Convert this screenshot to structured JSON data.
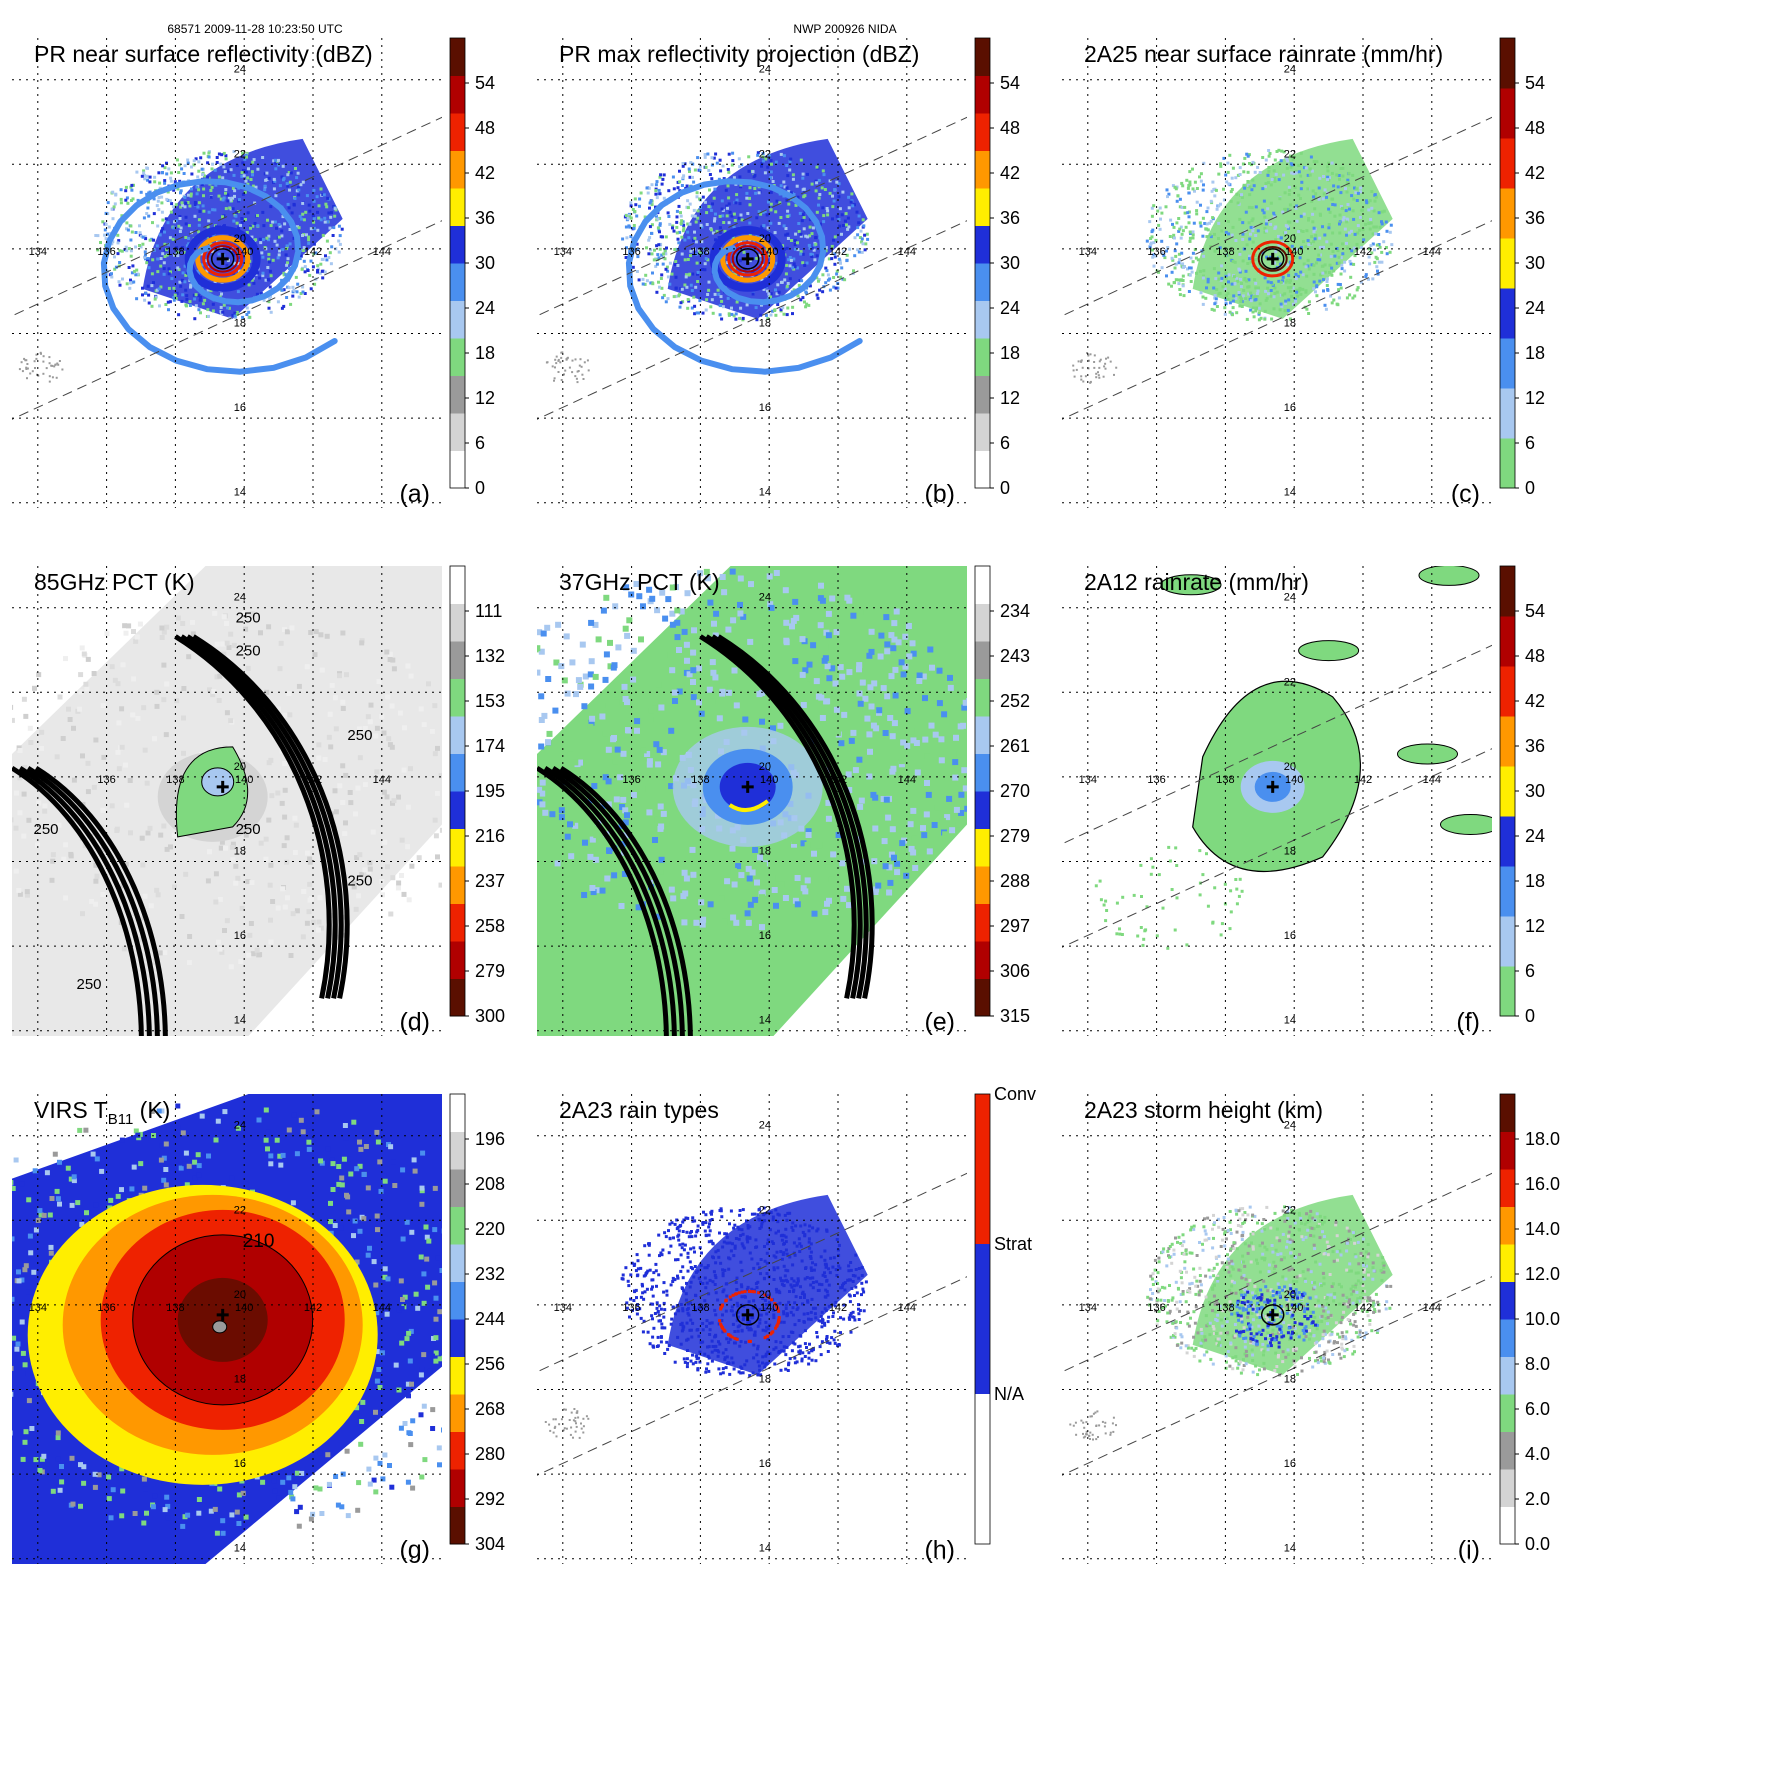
{
  "header": {
    "orbit_time": "68571 2009-11-28 10:23:50 UTC",
    "storm": "NWP 200926 NIDA"
  },
  "grid": {
    "lon_labels": [
      "134",
      "136",
      "138",
      "140",
      "142",
      "144"
    ],
    "lat_labels": [
      "14",
      "16",
      "18",
      "20",
      "22",
      "24"
    ]
  },
  "colors": {
    "white": "#ffffff",
    "lightgray": "#d4d4d4",
    "gray": "#9a9a9a",
    "green": "#7fd97f",
    "lightblue": "#a8c8f0",
    "midblue": "#4a8fef",
    "blue": "#1f2fd8",
    "yellow": "#ffee00",
    "orange": "#ff9800",
    "red": "#ee2200",
    "darkred": "#b00000",
    "maroon": "#5a0f00"
  },
  "chart_data": [
    {
      "id": "a",
      "type": "heatmap",
      "title": "PR near surface reflectivity (dBZ)",
      "panel_label": "(a)",
      "colorbar_ticks": [
        "54",
        "48",
        "42",
        "36",
        "30",
        "24",
        "18",
        "12",
        "6",
        "0"
      ],
      "scale": {
        "min": 0,
        "max": 60
      }
    },
    {
      "id": "b",
      "type": "heatmap",
      "title": "PR max reflectivity projection (dBZ)",
      "panel_label": "(b)",
      "colorbar_ticks": [
        "54",
        "48",
        "42",
        "36",
        "30",
        "24",
        "18",
        "12",
        "6",
        "0"
      ],
      "scale": {
        "min": 0,
        "max": 60
      }
    },
    {
      "id": "c",
      "type": "heatmap",
      "title": "2A25 near surface rainrate (mm/hr)",
      "panel_label": "(c)",
      "colorbar_ticks": [
        "54",
        "48",
        "42",
        "36",
        "30",
        "24",
        "18",
        "12",
        "6",
        "0"
      ],
      "scale": {
        "min": 0,
        "max": 60
      }
    },
    {
      "id": "d",
      "type": "heatmap",
      "title": "85GHz PCT (K)",
      "panel_label": "(d)",
      "colorbar_ticks": [
        "111",
        "132",
        "153",
        "174",
        "195",
        "216",
        "237",
        "258",
        "279",
        "300"
      ],
      "scale": {
        "min": 90,
        "max": 300
      },
      "contour_labels": [
        "250",
        "250",
        "250",
        "250",
        "250",
        "250",
        "250"
      ]
    },
    {
      "id": "e",
      "type": "heatmap",
      "title": "37GHz PCT (K)",
      "panel_label": "(e)",
      "colorbar_ticks": [
        "234",
        "243",
        "252",
        "261",
        "270",
        "279",
        "288",
        "297",
        "306",
        "315"
      ],
      "scale": {
        "min": 225,
        "max": 315
      }
    },
    {
      "id": "f",
      "type": "heatmap",
      "title": "2A12 rainrate (mm/hr)",
      "panel_label": "(f)",
      "colorbar_ticks": [
        "54",
        "48",
        "42",
        "36",
        "30",
        "24",
        "18",
        "12",
        "6",
        "0"
      ],
      "scale": {
        "min": 0,
        "max": 60
      }
    },
    {
      "id": "g",
      "type": "heatmap",
      "title": "VIRS T",
      "title_sub": "B11",
      "title_unit": " (K)",
      "panel_label": "(g)",
      "colorbar_ticks": [
        "196",
        "208",
        "220",
        "232",
        "244",
        "256",
        "268",
        "280",
        "292",
        "304"
      ],
      "scale": {
        "min": 184,
        "max": 304
      },
      "contour_labels": [
        "210"
      ]
    },
    {
      "id": "h",
      "type": "heatmap",
      "title": "2A23 rain types",
      "panel_label": "(h)",
      "categories": [
        "Conv",
        "Strat",
        "N/A"
      ]
    },
    {
      "id": "i",
      "type": "heatmap",
      "title": "2A23 storm height (km)",
      "panel_label": "(i)",
      "colorbar_ticks": [
        "18.0",
        "16.0",
        "14.0",
        "12.0",
        "10.0",
        "8.0",
        "6.0",
        "4.0",
        "2.0",
        "0.0"
      ],
      "scale": {
        "min": 0,
        "max": 20
      }
    }
  ]
}
